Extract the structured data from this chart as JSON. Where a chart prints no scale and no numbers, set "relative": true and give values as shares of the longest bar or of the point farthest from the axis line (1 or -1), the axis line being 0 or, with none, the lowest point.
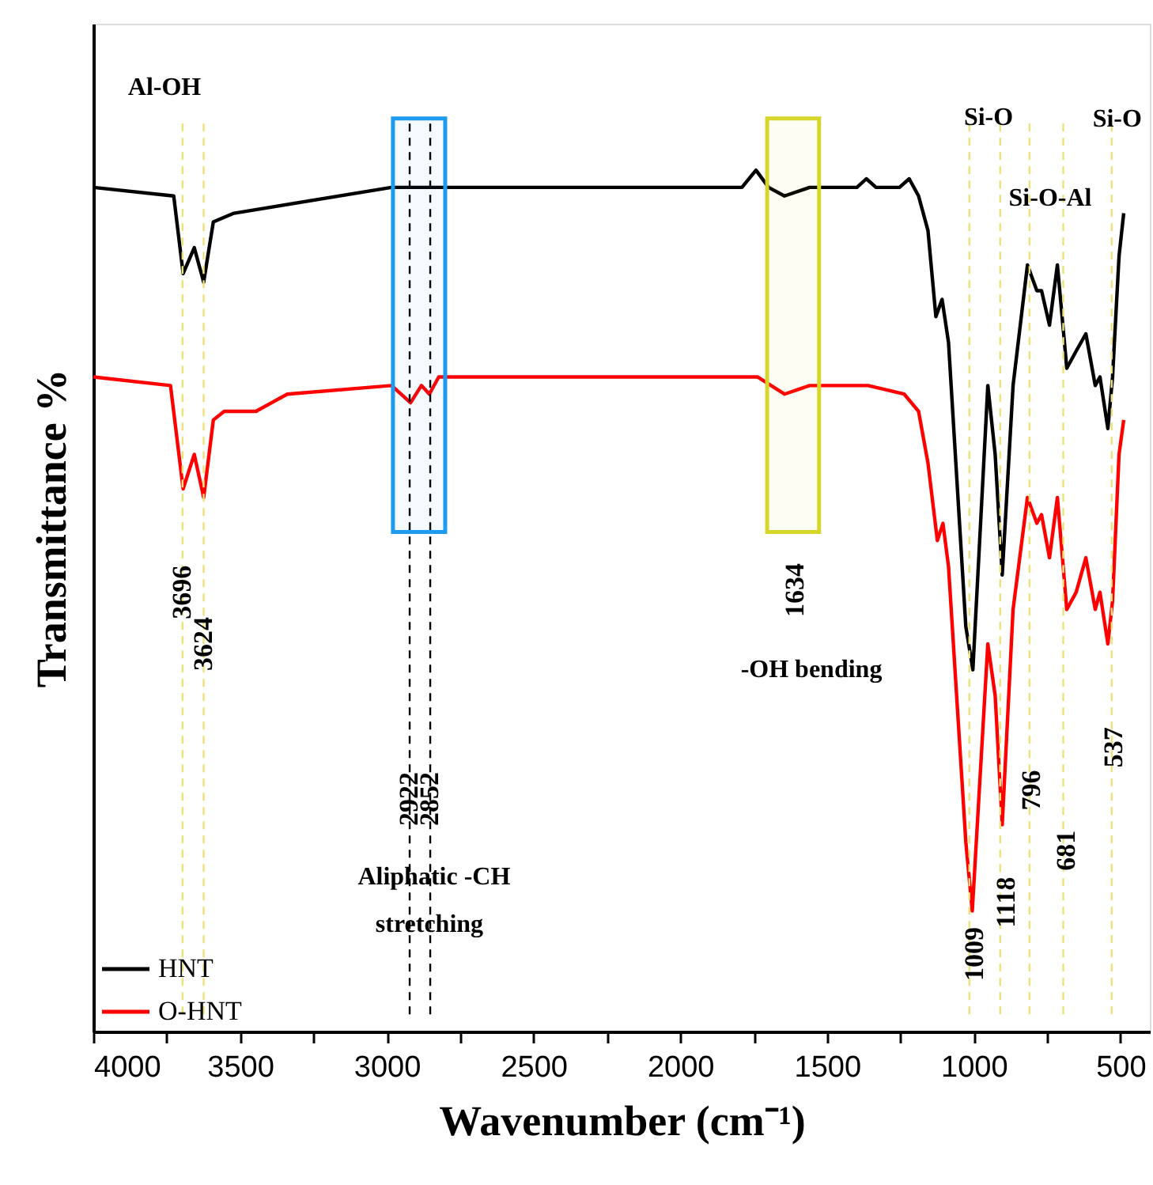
{
  "chart_data": {
    "type": "line",
    "relative": true,
    "xlabel": "Wavenumber (cm⁻¹)",
    "ylabel": "Transmittance %",
    "xlim": [
      4000,
      400
    ],
    "xticks": [
      4000,
      {
        "value": 3750,
        "label": null
      },
      3500,
      {
        "value": 3250,
        "label": null
      },
      3000,
      {
        "value": 2750,
        "label": null
      },
      2500,
      {
        "value": 2250,
        "label": null
      },
      2000,
      {
        "value": 1750,
        "label": null
      },
      1500,
      {
        "value": 1250,
        "label": null
      },
      1000,
      {
        "value": 750,
        "label": null
      },
      500
    ],
    "legend": "bottom left",
    "grid": false,
    "marker": "none",
    "line_style": "solid",
    "tick_labels": "x",
    "series": [
      {
        "name": "HNT",
        "color": "#000000",
        "x": [
          4000,
          3726,
          3694,
          3656,
          3624,
          3591,
          3521,
          2984,
          2247,
          1790,
          1742,
          1699,
          1645,
          1559,
          1398,
          1366,
          1333,
          1253,
          1220,
          1188,
          1156,
          1129,
          1108,
          1086,
          1027,
          1003,
          952,
          927,
          903,
          866,
          817,
          785,
          769,
          742,
          715,
          683,
          651,
          618,
          586,
          570,
          543,
          527,
          505,
          489
        ],
        "values": [
          0.98,
          0.97,
          0.88,
          0.91,
          0.87,
          0.94,
          0.95,
          0.98,
          0.98,
          0.98,
          1.0,
          0.98,
          0.97,
          0.98,
          0.98,
          0.99,
          0.98,
          0.98,
          0.99,
          0.97,
          0.93,
          0.83,
          0.85,
          0.8,
          0.47,
          0.42,
          0.75,
          0.67,
          0.53,
          0.75,
          0.89,
          0.86,
          0.86,
          0.82,
          0.89,
          0.77,
          0.79,
          0.81,
          0.75,
          0.76,
          0.7,
          0.76,
          0.9,
          0.95
        ]
      },
      {
        "name": "O-HNT",
        "color": "#ff0000",
        "x": [
          4000,
          3737,
          3694,
          3656,
          3624,
          3591,
          3554,
          3484,
          3446,
          3339,
          2984,
          2919,
          2882,
          2855,
          2823,
          2247,
          1737,
          1645,
          1559,
          1360,
          1237,
          1188,
          1156,
          1124,
          1105,
          1086,
          1027,
          1005,
          952,
          927,
          903,
          866,
          817,
          785,
          769,
          742,
          715,
          683,
          651,
          618,
          586,
          570,
          543,
          527,
          505,
          489
        ],
        "values": [
          0.76,
          0.75,
          0.63,
          0.67,
          0.62,
          0.71,
          0.72,
          0.72,
          0.72,
          0.74,
          0.75,
          0.73,
          0.75,
          0.74,
          0.76,
          0.76,
          0.76,
          0.74,
          0.75,
          0.75,
          0.74,
          0.72,
          0.66,
          0.57,
          0.59,
          0.54,
          0.22,
          0.14,
          0.45,
          0.39,
          0.24,
          0.49,
          0.62,
          0.59,
          0.6,
          0.55,
          0.62,
          0.49,
          0.51,
          0.55,
          0.49,
          0.51,
          0.45,
          0.5,
          0.67,
          0.71
        ]
      }
    ],
    "ref_lines": [
      {
        "axis": "x",
        "value": 3696,
        "color": "#ece27a",
        "line_style": "dashed"
      },
      {
        "axis": "x",
        "value": 3624,
        "color": "#ece27a",
        "line_style": "dashed"
      },
      {
        "axis": "x",
        "value": 2922,
        "color": "#000000",
        "line_style": "dashed"
      },
      {
        "axis": "x",
        "value": 2852,
        "color": "#000000",
        "line_style": "dashed"
      },
      {
        "axis": "x",
        "value": 1015,
        "color": "#ece27a",
        "line_style": "dashed"
      },
      {
        "axis": "x",
        "value": 910,
        "color": "#ece27a",
        "line_style": "dashed"
      },
      {
        "axis": "x",
        "value": 810,
        "color": "#ece27a",
        "line_style": "dashed"
      },
      {
        "axis": "x",
        "value": 695,
        "color": "#ece27a",
        "line_style": "dashed"
      },
      {
        "axis": "x",
        "value": 530,
        "color": "#ece27a",
        "line_style": "dashed"
      }
    ],
    "bands": [
      {
        "axis": "x",
        "from": 2979,
        "to": 2801,
        "color": "#1e9bf0"
      },
      {
        "axis": "x",
        "from": 1704,
        "to": 1527,
        "color": "#d6d62a"
      }
    ],
    "annotations": [
      "Al-OH",
      "Si-O",
      {
        "text": "Si-O",
        "x": 511,
        "y": 1.06
      },
      "Si-O-Al",
      {
        "text": "3696",
        "x": 3696,
        "y": 0.51
      },
      {
        "text": "3624",
        "x": 3624,
        "y": 0.45
      },
      {
        "text": "2922",
        "x": 2922,
        "y": 0.27
      },
      {
        "text": "2852",
        "x": 2852,
        "y": 0.27
      },
      "1634",
      {
        "text": "1009",
        "x": 995,
        "y": 0.09
      },
      {
        "text": "1118",
        "x": 887,
        "y": 0.15
      },
      {
        "text": "796",
        "x": 801,
        "y": 0.28
      },
      {
        "text": "681",
        "x": 683,
        "y": 0.21
      },
      {
        "text": "537",
        "x": 522,
        "y": 0.33
      },
      "-OH  bending",
      {
        "text": "Aliphatic -CH",
        "x": 2839,
        "y": 0.18
      },
      {
        "text": "stretching",
        "x": 2855,
        "y": 0.125
      }
    ]
  }
}
